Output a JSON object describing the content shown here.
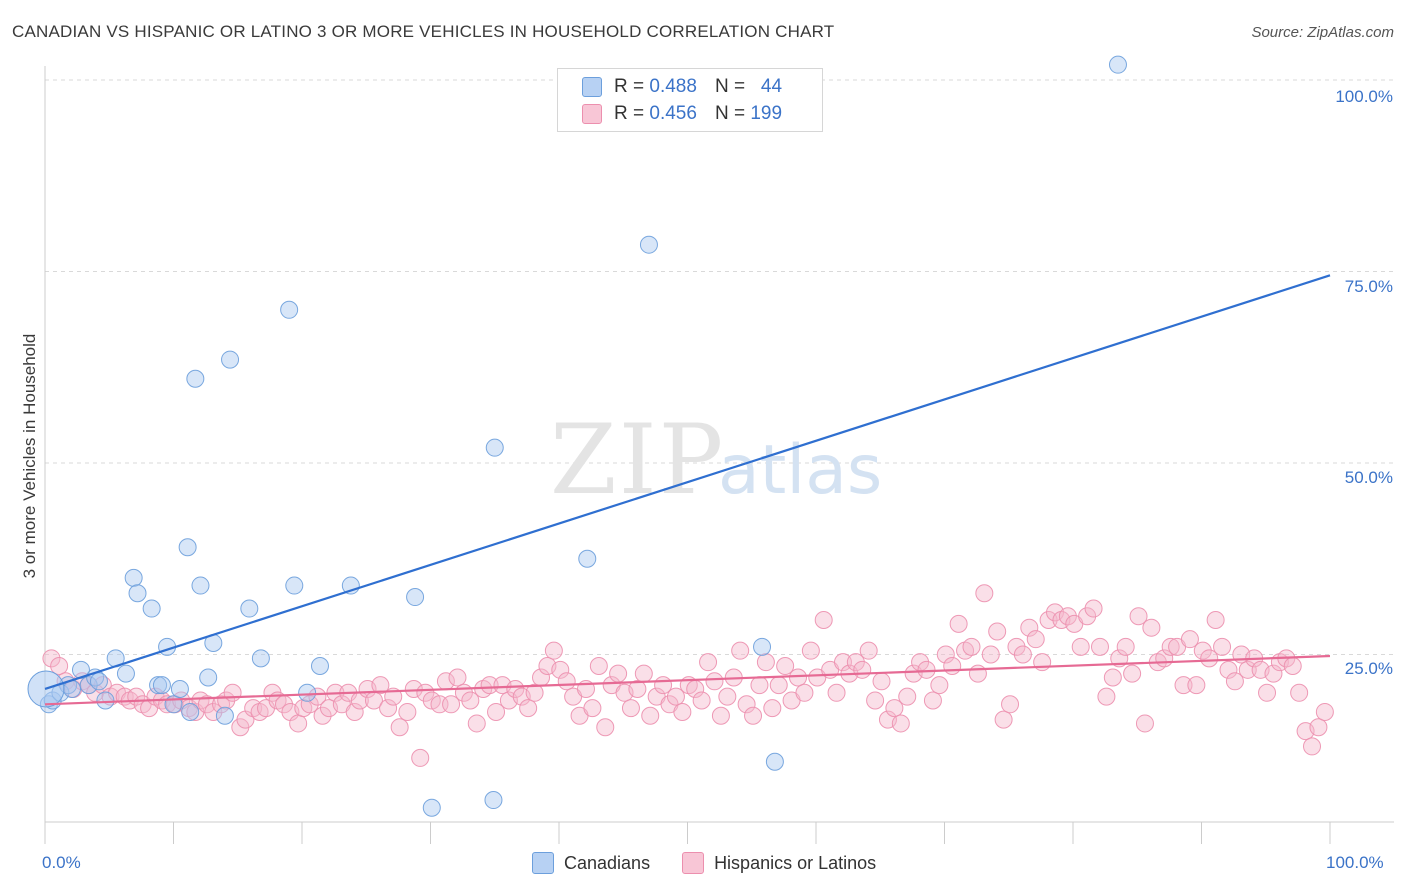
{
  "title": "CANADIAN VS HISPANIC OR LATINO 3 OR MORE VEHICLES IN HOUSEHOLD CORRELATION CHART",
  "source": "Source: ZipAtlas.com",
  "watermark": {
    "zip": "ZIP",
    "atlas": "atlas"
  },
  "legend_top": {
    "rows": [
      {
        "r_label": "R =",
        "r_value": "0.488",
        "n_label": "N =",
        "n_value": "44"
      },
      {
        "r_label": "R =",
        "r_value": "0.456",
        "n_label": "N =",
        "n_value": "199"
      }
    ]
  },
  "legend_bottom": {
    "canadians": "Canadians",
    "hispanics": "Hispanics or Latinos"
  },
  "colors": {
    "canadians_fill": "#a9c8f0",
    "canadians_stroke": "#6c9fdc",
    "canadians_line": "#2f6fd0",
    "hispanics_fill": "#f5b8cc",
    "hispanics_stroke": "#ec8fae",
    "hispanics_line": "#e66a94",
    "axis_text": "#3b73c8",
    "grid": "#d9d9d9"
  },
  "chart_data": {
    "type": "scatter",
    "title": "CANADIAN VS HISPANIC OR LATINO 3 OR MORE VEHICLES IN HOUSEHOLD CORRELATION CHART",
    "xlabel": "",
    "ylabel": "3 or more Vehicles in Household",
    "x_tick_labels": [
      "0.0%",
      "100.0%"
    ],
    "y_tick_labels": [
      "25.0%",
      "50.0%",
      "75.0%",
      "100.0%"
    ],
    "xlim": [
      0,
      100
    ],
    "ylim": [
      0,
      102
    ],
    "grid": true,
    "series": [
      {
        "name": "Canadians",
        "r": 0.488,
        "n": 44,
        "trend": {
          "x": [
            0,
            100
          ],
          "y": [
            20.5,
            74.5
          ]
        },
        "points": [
          [
            0.3,
            18.5
          ],
          [
            0.6,
            19
          ],
          [
            1.2,
            20
          ],
          [
            1.8,
            21
          ],
          [
            2.1,
            20.5
          ],
          [
            2.8,
            23
          ],
          [
            3.4,
            21
          ],
          [
            3.9,
            22
          ],
          [
            4.2,
            21.5
          ],
          [
            4.7,
            19
          ],
          [
            5.5,
            24.5
          ],
          [
            6.3,
            22.5
          ],
          [
            6.9,
            35
          ],
          [
            7.2,
            33
          ],
          [
            8.3,
            31
          ],
          [
            8.8,
            21
          ],
          [
            9.1,
            21
          ],
          [
            9.5,
            26
          ],
          [
            10.0,
            18.5
          ],
          [
            10.5,
            20.5
          ],
          [
            11.1,
            39
          ],
          [
            11.3,
            17.5
          ],
          [
            11.7,
            61
          ],
          [
            12.1,
            34
          ],
          [
            12.7,
            22
          ],
          [
            13.1,
            26.5
          ],
          [
            14.0,
            17
          ],
          [
            14.4,
            63.5
          ],
          [
            15.9,
            31
          ],
          [
            16.8,
            24.5
          ],
          [
            19.0,
            70
          ],
          [
            19.4,
            34
          ],
          [
            20.4,
            20
          ],
          [
            21.4,
            23.5
          ],
          [
            23.8,
            34
          ],
          [
            28.8,
            32.5
          ],
          [
            30.1,
            5
          ],
          [
            34.9,
            6
          ],
          [
            35.0,
            52
          ],
          [
            42.2,
            37.5
          ],
          [
            47.0,
            78.5
          ],
          [
            55.8,
            26
          ],
          [
            56.8,
            11
          ],
          [
            83.5,
            102
          ]
        ]
      },
      {
        "name": "Hispanics or Latinos",
        "r": 0.456,
        "n": 199,
        "trend": {
          "x": [
            0,
            100
          ],
          "y": [
            18.5,
            24.8
          ]
        },
        "points": [
          [
            0.5,
            24.5
          ],
          [
            1.1,
            23.5
          ],
          [
            1.6,
            21.5
          ],
          [
            2.2,
            20.5
          ],
          [
            2.9,
            21.5
          ],
          [
            3.4,
            21
          ],
          [
            3.9,
            20
          ],
          [
            4.5,
            21
          ],
          [
            5.1,
            19.5
          ],
          [
            5.6,
            20
          ],
          [
            6.2,
            19.5
          ],
          [
            6.6,
            19
          ],
          [
            7.1,
            19.5
          ],
          [
            7.6,
            18.5
          ],
          [
            8.1,
            18
          ],
          [
            8.6,
            19.5
          ],
          [
            9.1,
            19
          ],
          [
            9.5,
            18.5
          ],
          [
            10.1,
            18.5
          ],
          [
            10.6,
            19
          ],
          [
            11.2,
            18
          ],
          [
            11.7,
            17.5
          ],
          [
            12.1,
            19
          ],
          [
            12.6,
            18.5
          ],
          [
            13.1,
            17.5
          ],
          [
            13.7,
            18.5
          ],
          [
            14.1,
            19
          ],
          [
            14.6,
            20
          ],
          [
            15.2,
            15.5
          ],
          [
            15.6,
            16.5
          ],
          [
            16.2,
            18
          ],
          [
            16.7,
            17.5
          ],
          [
            17.2,
            18
          ],
          [
            17.7,
            20
          ],
          [
            18.1,
            19
          ],
          [
            18.6,
            18.5
          ],
          [
            19.1,
            17.5
          ],
          [
            19.7,
            16
          ],
          [
            20.1,
            18
          ],
          [
            20.6,
            18.5
          ],
          [
            21.2,
            19.5
          ],
          [
            21.6,
            17
          ],
          [
            22.1,
            18
          ],
          [
            22.6,
            20
          ],
          [
            23.1,
            18.5
          ],
          [
            23.6,
            20
          ],
          [
            24.1,
            17.5
          ],
          [
            24.5,
            19
          ],
          [
            25.1,
            20.5
          ],
          [
            25.6,
            19
          ],
          [
            26.1,
            21
          ],
          [
            26.7,
            18
          ],
          [
            27.1,
            19.5
          ],
          [
            27.6,
            15.5
          ],
          [
            28.2,
            17.5
          ],
          [
            28.7,
            20.5
          ],
          [
            29.2,
            11.5
          ],
          [
            29.6,
            20
          ],
          [
            30.1,
            19
          ],
          [
            30.7,
            18.5
          ],
          [
            31.2,
            21.5
          ],
          [
            31.6,
            18.5
          ],
          [
            32.1,
            22
          ],
          [
            32.6,
            20
          ],
          [
            33.1,
            19
          ],
          [
            33.6,
            16
          ],
          [
            34.1,
            20.5
          ],
          [
            34.6,
            21
          ],
          [
            35.1,
            17.5
          ],
          [
            35.6,
            21
          ],
          [
            36.1,
            19
          ],
          [
            36.6,
            20.5
          ],
          [
            37.1,
            19.5
          ],
          [
            37.6,
            18
          ],
          [
            38.1,
            20
          ],
          [
            38.6,
            22
          ],
          [
            39.1,
            23.5
          ],
          [
            39.6,
            25.5
          ],
          [
            40.1,
            23
          ],
          [
            40.6,
            21.5
          ],
          [
            41.1,
            19.5
          ],
          [
            41.6,
            17
          ],
          [
            42.1,
            20.5
          ],
          [
            42.6,
            18
          ],
          [
            43.1,
            23.5
          ],
          [
            43.6,
            15.5
          ],
          [
            44.1,
            21
          ],
          [
            44.6,
            22.5
          ],
          [
            45.1,
            20
          ],
          [
            45.6,
            18
          ],
          [
            46.1,
            20.5
          ],
          [
            46.6,
            22.5
          ],
          [
            47.1,
            17
          ],
          [
            47.6,
            19.5
          ],
          [
            48.1,
            21
          ],
          [
            48.6,
            18.5
          ],
          [
            49.1,
            19.5
          ],
          [
            49.6,
            17.5
          ],
          [
            50.1,
            21
          ],
          [
            50.6,
            20.5
          ],
          [
            51.1,
            19
          ],
          [
            51.6,
            24
          ],
          [
            52.1,
            21.5
          ],
          [
            52.6,
            17
          ],
          [
            53.1,
            19.5
          ],
          [
            53.6,
            22
          ],
          [
            54.1,
            25.5
          ],
          [
            54.6,
            18.5
          ],
          [
            55.1,
            17
          ],
          [
            55.6,
            21
          ],
          [
            56.1,
            24
          ],
          [
            56.6,
            18
          ],
          [
            57.1,
            21
          ],
          [
            57.6,
            23.5
          ],
          [
            58.1,
            19
          ],
          [
            58.6,
            22
          ],
          [
            59.1,
            20
          ],
          [
            59.6,
            25.5
          ],
          [
            60.1,
            22
          ],
          [
            60.6,
            29.5
          ],
          [
            61.1,
            23
          ],
          [
            61.6,
            20
          ],
          [
            62.1,
            24
          ],
          [
            62.6,
            22.5
          ],
          [
            63.1,
            24
          ],
          [
            63.6,
            23
          ],
          [
            64.1,
            25.5
          ],
          [
            64.6,
            19
          ],
          [
            65.1,
            21.5
          ],
          [
            65.6,
            16.5
          ],
          [
            66.1,
            18
          ],
          [
            66.6,
            16
          ],
          [
            67.1,
            19.5
          ],
          [
            67.6,
            22.5
          ],
          [
            68.1,
            24
          ],
          [
            68.6,
            23
          ],
          [
            69.1,
            19
          ],
          [
            69.6,
            21
          ],
          [
            70.1,
            25
          ],
          [
            70.6,
            23.5
          ],
          [
            71.1,
            29
          ],
          [
            71.6,
            25.5
          ],
          [
            72.1,
            26
          ],
          [
            72.6,
            22.5
          ],
          [
            73.1,
            33
          ],
          [
            73.6,
            25
          ],
          [
            74.1,
            28
          ],
          [
            74.6,
            16.5
          ],
          [
            75.1,
            18.5
          ],
          [
            75.6,
            26
          ],
          [
            76.1,
            25
          ],
          [
            76.6,
            28.5
          ],
          [
            77.1,
            27
          ],
          [
            77.6,
            24
          ],
          [
            78.1,
            29.5
          ],
          [
            78.6,
            30.5
          ],
          [
            79.1,
            29.5
          ],
          [
            79.6,
            30
          ],
          [
            80.1,
            29
          ],
          [
            80.6,
            26
          ],
          [
            81.1,
            30
          ],
          [
            81.6,
            31
          ],
          [
            82.1,
            26
          ],
          [
            82.6,
            19.5
          ],
          [
            83.1,
            22
          ],
          [
            83.6,
            24.5
          ],
          [
            84.1,
            26
          ],
          [
            84.6,
            22.5
          ],
          [
            85.1,
            30
          ],
          [
            85.6,
            16
          ],
          [
            86.1,
            28.5
          ],
          [
            86.6,
            24
          ],
          [
            87.1,
            24.5
          ],
          [
            87.6,
            26
          ],
          [
            88.1,
            26
          ],
          [
            88.6,
            21
          ],
          [
            89.1,
            27
          ],
          [
            89.6,
            21
          ],
          [
            90.1,
            25.5
          ],
          [
            90.6,
            24.5
          ],
          [
            91.1,
            29.5
          ],
          [
            91.6,
            26
          ],
          [
            92.1,
            23
          ],
          [
            92.6,
            21.5
          ],
          [
            93.1,
            25
          ],
          [
            93.6,
            23
          ],
          [
            94.1,
            24.5
          ],
          [
            94.6,
            23
          ],
          [
            95.1,
            20
          ],
          [
            95.6,
            22.5
          ],
          [
            96.1,
            24
          ],
          [
            96.6,
            24.5
          ],
          [
            97.1,
            23.5
          ],
          [
            97.6,
            20
          ],
          [
            98.1,
            15
          ],
          [
            98.6,
            13
          ],
          [
            99.1,
            15.5
          ],
          [
            99.6,
            17.5
          ]
        ]
      }
    ]
  }
}
